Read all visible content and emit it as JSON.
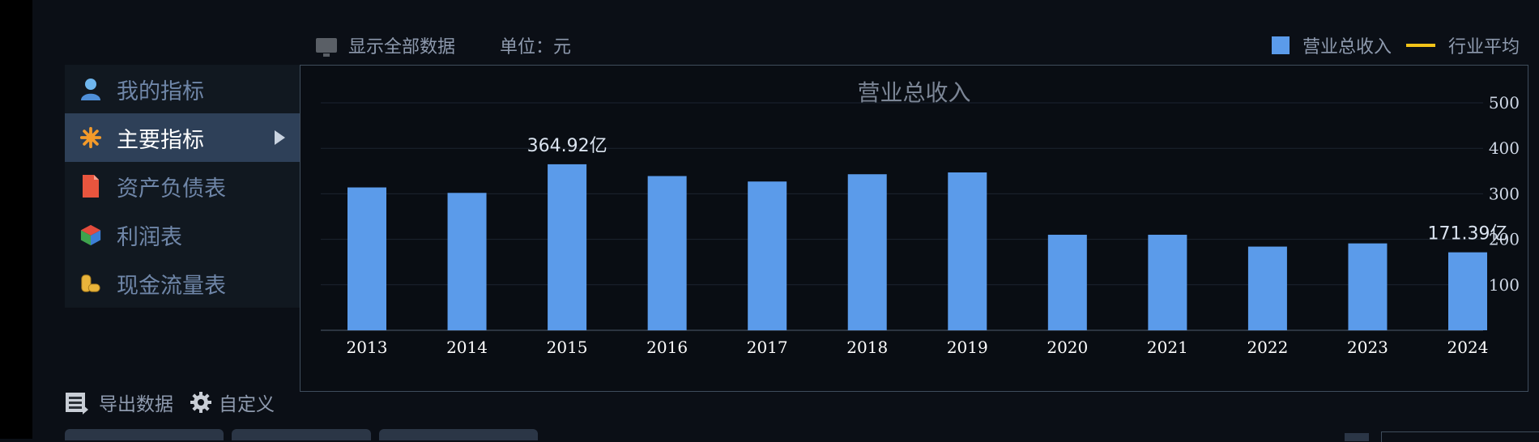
{
  "toolbar": {
    "show_all_label": "显示全部数据",
    "unit_label": "单位：元"
  },
  "legend": {
    "bar_label": "营业总收入",
    "line_label": "行业平均",
    "bar_color": "#5b9bea",
    "line_color": "#f2c318"
  },
  "sidebar": {
    "items": [
      {
        "label": "我的指标",
        "icon": "user-icon"
      },
      {
        "label": "主要指标",
        "icon": "star-icon"
      },
      {
        "label": "资产负债表",
        "icon": "document-icon"
      },
      {
        "label": "利润表",
        "icon": "cube-icon"
      },
      {
        "label": "现金流量表",
        "icon": "coins-icon"
      }
    ],
    "active_index": 1
  },
  "footer": {
    "export_label": "导出数据",
    "custom_label": "自定义"
  },
  "chart_data": {
    "type": "bar",
    "title": "营业总收入",
    "categories": [
      "2013",
      "2014",
      "2015",
      "2016",
      "2017",
      "2018",
      "2019",
      "2020",
      "2021",
      "2022",
      "2023",
      "2024"
    ],
    "series": [
      {
        "name": "营业总收入",
        "values": [
          314,
          302,
          364.92,
          339,
          327,
          343,
          347,
          210,
          210,
          184,
          191,
          171.39
        ]
      }
    ],
    "y_ticks": [
      "100",
      "200",
      "300",
      "400",
      "500"
    ],
    "ylim": [
      0,
      500
    ],
    "y_axis_side": "right",
    "grid": true,
    "data_labels": [
      {
        "index": 2,
        "text": "364.92亿"
      },
      {
        "index": 11,
        "text": "171.39亿"
      }
    ],
    "legend_position": "top-right"
  }
}
